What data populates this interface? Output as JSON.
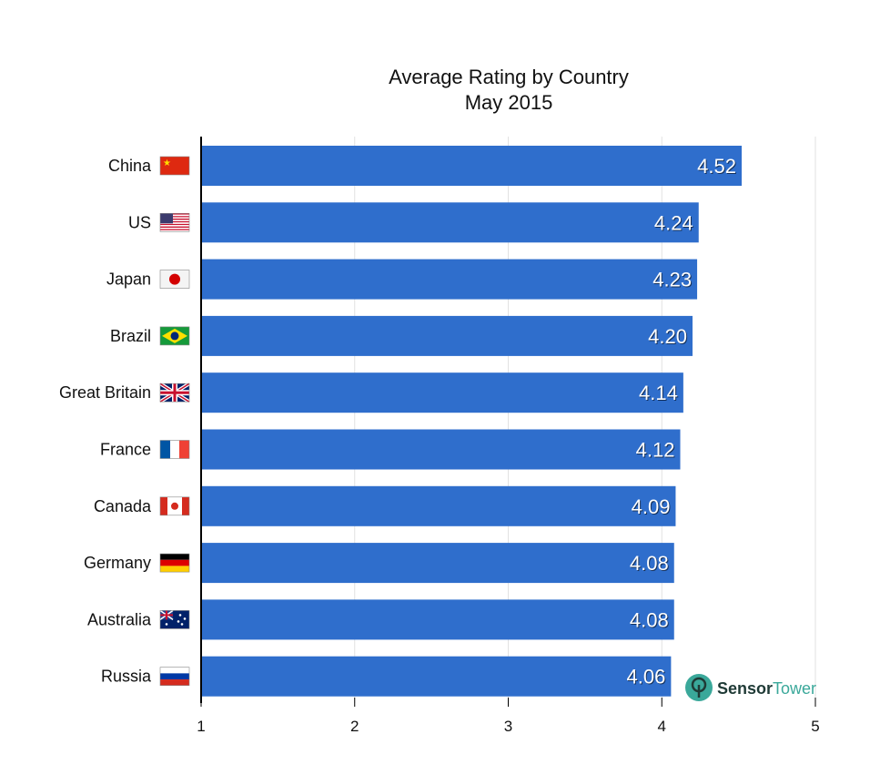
{
  "chart_data": {
    "type": "bar",
    "orientation": "horizontal",
    "title": "Average Rating by Country",
    "subtitle": "May 2015",
    "categories": [
      "China",
      "US",
      "Japan",
      "Brazil",
      "Great Britain",
      "France",
      "Canada",
      "Germany",
      "Australia",
      "Russia"
    ],
    "values": [
      4.52,
      4.24,
      4.23,
      4.2,
      4.14,
      4.12,
      4.09,
      4.08,
      4.08,
      4.06
    ],
    "value_labels": [
      "4.52",
      "4.24",
      "4.23",
      "4.20",
      "4.14",
      "4.12",
      "4.09",
      "4.08",
      "4.08",
      "4.06"
    ],
    "xlim": [
      1,
      5
    ],
    "x_ticks": [
      "1",
      "2",
      "3",
      "4",
      "5"
    ],
    "xlabel": "",
    "ylabel": "",
    "grid": true,
    "legend": "none",
    "bar_color": "#2f6ecc",
    "flags": [
      "china-flag-icon",
      "us-flag-icon",
      "japan-flag-icon",
      "brazil-flag-icon",
      "great-britain-flag-icon",
      "france-flag-icon",
      "canada-flag-icon",
      "germany-flag-icon",
      "australia-flag-icon",
      "russia-flag-icon"
    ]
  },
  "branding": {
    "logo_part1": "Sensor",
    "logo_part2": "Tower",
    "color_dark": "#1f3a36",
    "color_accent": "#3aa89a"
  }
}
